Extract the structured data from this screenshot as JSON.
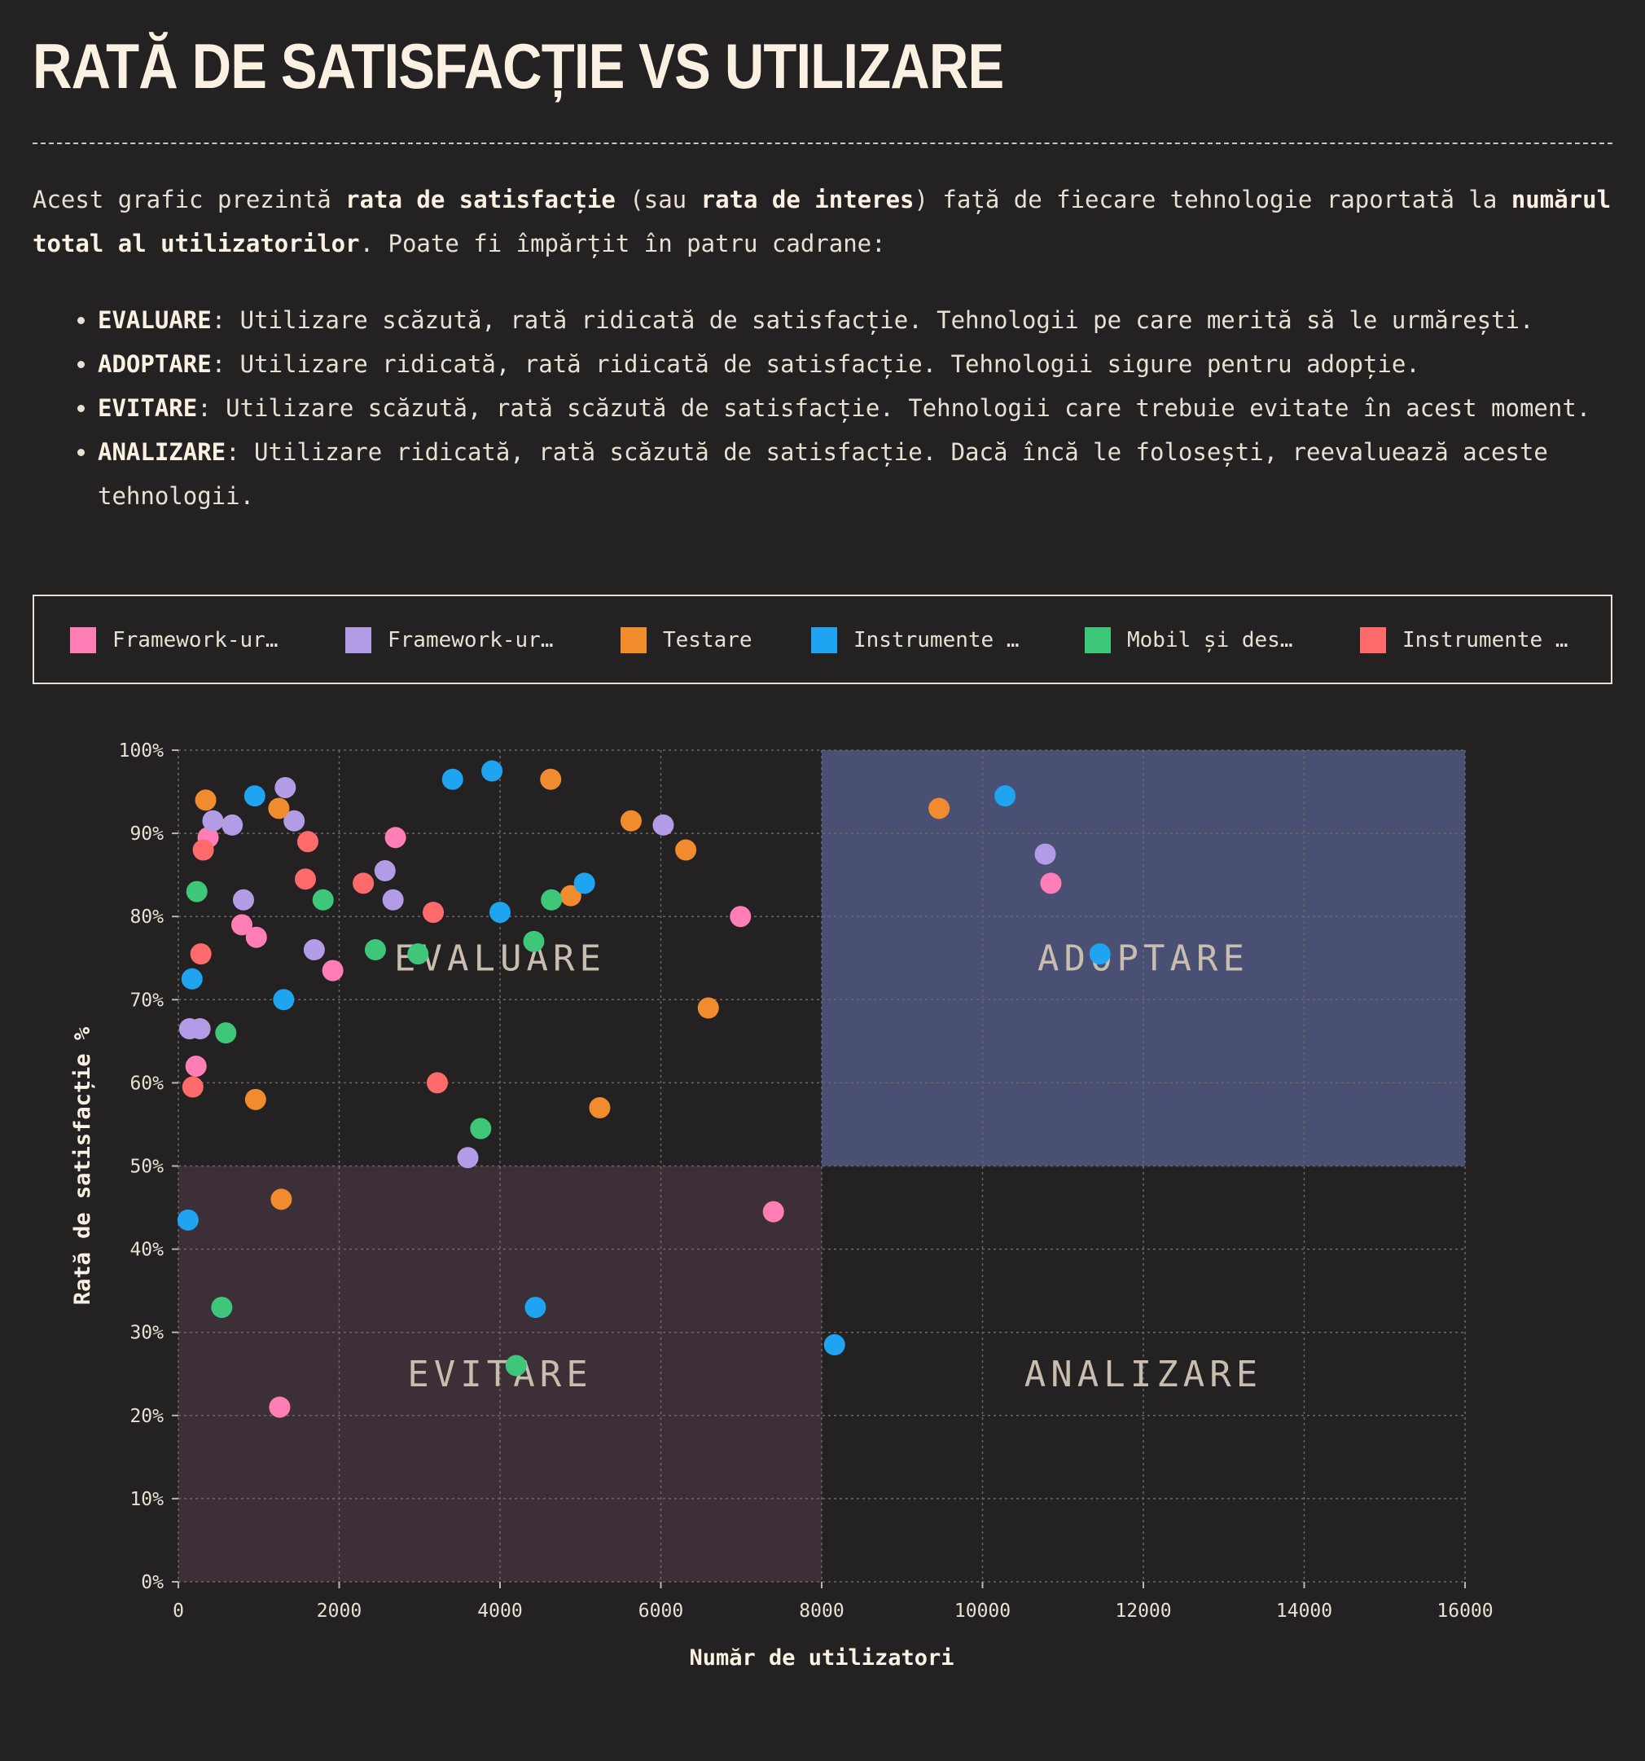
{
  "title": "RATĂ DE SATISFACȚIE VS UTILIZARE",
  "intro": {
    "p1": "Acest grafic prezintă ",
    "b1": "rata de satisfacție",
    "p2": " (sau ",
    "b2": "rata de interes",
    "p3": ") față de fiecare tehnologie raportată la ",
    "b3": "numărul total al utilizatorilor",
    "p4": ". Poate fi împărțit în patru cadrane:"
  },
  "quadrant_descriptions": [
    {
      "name": "EVALUARE",
      "text": ": Utilizare scăzută, rată ridicată de satisfacție. Tehnologii pe care merită să le urmărești."
    },
    {
      "name": "ADOPTARE",
      "text": ": Utilizare ridicată, rată ridicată de satisfacție. Tehnologii sigure pentru adopție."
    },
    {
      "name": "EVITARE",
      "text": ": Utilizare scăzută, rată scăzută de satisfacție. Tehnologii care trebuie evitate în acest moment."
    },
    {
      "name": "ANALIZARE",
      "text": ": Utilizare ridicată, rată scăzută de satisfacție. Dacă încă le folosești, reevaluează aceste tehnologii."
    }
  ],
  "legend": [
    {
      "label": "Framework-ur…",
      "color": "#ff7eb6"
    },
    {
      "label": "Framework-ur…",
      "color": "#b39ce6"
    },
    {
      "label": "Testare",
      "color": "#f08c2e"
    },
    {
      "label": "Instrumente …",
      "color": "#1ea4f0"
    },
    {
      "label": "Mobil și des…",
      "color": "#3ec779"
    },
    {
      "label": "Instrumente …",
      "color": "#ff6b6b"
    }
  ],
  "chart_data": {
    "type": "scatter",
    "xlabel": "Număr de utilizatori",
    "ylabel": "Rată de satisfacție %",
    "xlim": [
      0,
      16000
    ],
    "ylim": [
      0,
      100
    ],
    "x_ticks": [
      "0",
      "2000",
      "4000",
      "6000",
      "8000",
      "10000",
      "12000",
      "14000",
      "16000"
    ],
    "y_ticks": [
      "0%",
      "10%",
      "20%",
      "30%",
      "40%",
      "50%",
      "60%",
      "70%",
      "80%",
      "90%",
      "100%"
    ],
    "grid": true,
    "quadrants": [
      {
        "label": "EVALUARE",
        "x": [
          0,
          8000
        ],
        "y": [
          50,
          100
        ],
        "fill": "#242122"
      },
      {
        "label": "ADOPTARE",
        "x": [
          8000,
          16000
        ],
        "y": [
          50,
          100
        ],
        "fill": "#4a5073"
      },
      {
        "label": "EVITARE",
        "x": [
          0,
          8000
        ],
        "y": [
          0,
          50
        ],
        "fill": "#3d2f37"
      },
      {
        "label": "ANALIZARE",
        "x": [
          8000,
          16000
        ],
        "y": [
          0,
          50
        ],
        "fill": "#242122"
      }
    ],
    "series": [
      {
        "color": "#ff7eb6",
        "points": [
          [
            370,
            89.5
          ],
          [
            790,
            79
          ],
          [
            970,
            77.5
          ],
          [
            220,
            62
          ],
          [
            2700,
            89.5
          ],
          [
            1920,
            73.5
          ],
          [
            6990,
            80
          ],
          [
            10850,
            84
          ],
          [
            7400,
            44.5
          ],
          [
            1260,
            21
          ]
        ]
      },
      {
        "color": "#b39ce6",
        "points": [
          [
            430,
            91.5
          ],
          [
            670,
            91
          ],
          [
            810,
            82
          ],
          [
            1330,
            95.5
          ],
          [
            1440,
            91.5
          ],
          [
            1690,
            76
          ],
          [
            2570,
            85.5
          ],
          [
            2670,
            82
          ],
          [
            140,
            66.5
          ],
          [
            270,
            66.5
          ],
          [
            6030,
            91
          ],
          [
            10780,
            87.5
          ],
          [
            3600,
            51
          ]
        ]
      },
      {
        "color": "#f08c2e",
        "points": [
          [
            340,
            94
          ],
          [
            1250,
            93
          ],
          [
            960,
            58
          ],
          [
            4630,
            96.5
          ],
          [
            5630,
            91.5
          ],
          [
            6310,
            88
          ],
          [
            4880,
            82.5
          ],
          [
            6590,
            69
          ],
          [
            5240,
            57
          ],
          [
            1280,
            46
          ],
          [
            9460,
            93
          ]
        ]
      },
      {
        "color": "#1ea4f0",
        "points": [
          [
            950,
            94.5
          ],
          [
            3410,
            96.5
          ],
          [
            3900,
            97.5
          ],
          [
            4000,
            80.5
          ],
          [
            5050,
            84
          ],
          [
            170,
            72.5
          ],
          [
            1310,
            70
          ],
          [
            120,
            43.5
          ],
          [
            4440,
            33
          ],
          [
            8160,
            28.5
          ],
          [
            10280,
            94.5
          ],
          [
            11460,
            75.5
          ]
        ]
      },
      {
        "color": "#3ec779",
        "points": [
          [
            230,
            83
          ],
          [
            1800,
            82
          ],
          [
            2450,
            76
          ],
          [
            2980,
            75.5
          ],
          [
            4420,
            77
          ],
          [
            4640,
            82
          ],
          [
            590,
            66
          ],
          [
            3760,
            54.5
          ],
          [
            540,
            33
          ],
          [
            4200,
            26
          ]
        ]
      },
      {
        "color": "#ff6b6b",
        "points": [
          [
            310,
            88
          ],
          [
            1610,
            89
          ],
          [
            1580,
            84.5
          ],
          [
            2300,
            84
          ],
          [
            3170,
            80.5
          ],
          [
            280,
            75.5
          ],
          [
            180,
            59.5
          ],
          [
            3220,
            60
          ]
        ]
      }
    ]
  }
}
